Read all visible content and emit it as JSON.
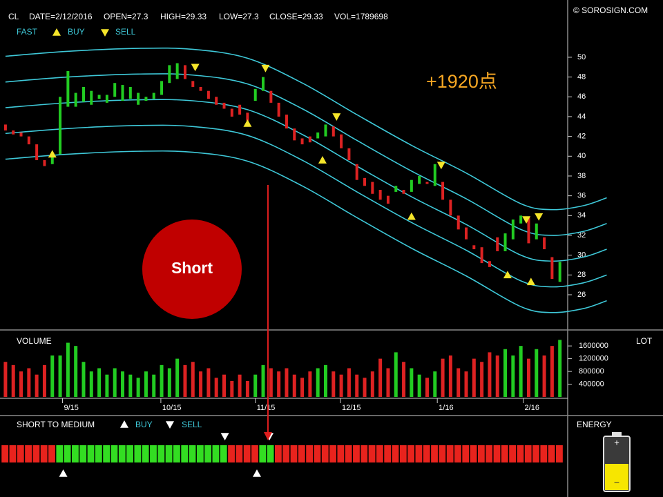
{
  "header": {
    "symbol": "CL",
    "date": "DATE=2/12/2016",
    "open": "OPEN=27.3",
    "high": "HIGH=29.33",
    "low": "LOW=27.3",
    "close": "CLOSE=29.33",
    "vol": "VOL=1789698",
    "copyright": "© SOROSIGN.COM"
  },
  "energy": {
    "title": "ENERGY"
  },
  "chart_data": [
    {
      "type": "candlestick",
      "annotation": "+1920点",
      "callout": "Short",
      "xlim": [
        -0.7,
        72
      ],
      "ylim": [
        23,
        51.6
      ],
      "yticks": [
        26,
        28,
        30,
        32,
        34,
        36,
        38,
        40,
        42,
        44,
        46,
        48,
        50
      ],
      "up_color": "#22cc22",
      "down_color": "#dd2222",
      "open": [
        43.2,
        42.6,
        42.4,
        42.0,
        41.2,
        39.6,
        39.2,
        40.2,
        45.0,
        45.0,
        45.5,
        45.2,
        45.8,
        45.4,
        46.0,
        45.6,
        45.8,
        45.2,
        45.6,
        45.8,
        46.2,
        47.4,
        47.8,
        49.2,
        47.6,
        47.0,
        46.6,
        46.0,
        45.4,
        44.8,
        45.2,
        44.4,
        45.6,
        46.6,
        46.6,
        45.4,
        44.2,
        42.8,
        41.8,
        42.0,
        41.8,
        42.0,
        43.0,
        42.2,
        40.8,
        39.2,
        37.8,
        37.4,
        36.6,
        36.0,
        36.4,
        36.6,
        36.4,
        37.2,
        37.4,
        37.0,
        37.4,
        35.6,
        34.0,
        32.8,
        31.0,
        30.8,
        29.4,
        31.8,
        30.4,
        31.6,
        33.2,
        33.8,
        31.6,
        31.8,
        29.8,
        27.3
      ],
      "close": [
        42.6,
        42.2,
        42.0,
        41.2,
        39.6,
        39.0,
        40.2,
        46.0,
        48.6,
        46.4,
        47.0,
        46.6,
        46.2,
        46.2,
        47.4,
        47.2,
        47.0,
        46.4,
        46.0,
        46.4,
        47.6,
        49.2,
        49.4,
        47.8,
        47.0,
        46.6,
        45.8,
        45.2,
        44.8,
        44.0,
        44.2,
        43.6,
        46.8,
        48.0,
        45.4,
        44.0,
        42.8,
        41.6,
        41.2,
        41.4,
        42.4,
        43.2,
        42.0,
        40.8,
        39.6,
        37.6,
        37.0,
        36.2,
        35.6,
        35.2,
        37.0,
        36.2,
        37.6,
        38.0,
        37.2,
        39.2,
        35.6,
        34.0,
        32.6,
        31.6,
        30.6,
        29.2,
        28.8,
        30.4,
        32.2,
        33.6,
        34.0,
        31.2,
        33.2,
        30.6,
        27.6,
        29.33
      ],
      "bands": {
        "name": "FAST",
        "color": "#3ec8d8",
        "x": [
          0,
          8,
          17,
          24,
          31,
          38,
          45,
          52,
          59,
          66,
          70,
          74,
          77
        ],
        "lines": [
          [
            50.1,
            50.6,
            50.9,
            50.8,
            49.9,
            47.4,
            44.2,
            41.1,
            38.3,
            35.2,
            34.6,
            35.0,
            35.8
          ],
          [
            47.5,
            48.0,
            48.3,
            48.2,
            47.3,
            44.8,
            41.6,
            38.5,
            35.7,
            32.6,
            32.0,
            32.4,
            33.2
          ],
          [
            44.9,
            45.4,
            45.7,
            45.6,
            44.7,
            42.2,
            39.0,
            35.9,
            33.1,
            30.0,
            29.4,
            29.8,
            30.6
          ],
          [
            42.3,
            42.8,
            43.1,
            43.0,
            42.1,
            39.6,
            36.4,
            33.3,
            30.5,
            27.4,
            26.8,
            27.2,
            28.0
          ],
          [
            39.7,
            40.2,
            40.5,
            40.4,
            39.5,
            37.0,
            33.8,
            30.7,
            27.9,
            24.8,
            24.2,
            24.6,
            25.4
          ]
        ]
      },
      "buy_signals": {
        "name": "BUY",
        "color": "#f5e52a",
        "x": [
          6,
          31,
          40.6,
          52,
          64.3,
          67.3
        ],
        "y": [
          40.2,
          43.3,
          39.6,
          33.9,
          28.0,
          27.3
        ]
      },
      "sell_signals": {
        "name": "SELL",
        "color": "#f5e52a",
        "x": [
          24.3,
          33.3,
          42.4,
          55.8,
          66.7,
          68.3
        ],
        "y": [
          49.0,
          48.9,
          44.0,
          39.1,
          33.6,
          33.9
        ]
      }
    },
    {
      "type": "bar",
      "title": "VOLUME",
      "unit_label": "LOT",
      "xlim": [
        -0.7,
        72
      ],
      "ylim": [
        0,
        1950000
      ],
      "yticks": [
        400000,
        800000,
        1200000,
        1600000
      ],
      "xticks": [
        {
          "value": 7.3,
          "label": "9/15"
        },
        {
          "value": 19.9,
          "label": "10/15"
        },
        {
          "value": 32,
          "label": "11/15"
        },
        {
          "value": 42.9,
          "label": "12/15"
        },
        {
          "value": 55.3,
          "label": "1/16"
        },
        {
          "value": 66.3,
          "label": "2/16"
        }
      ],
      "values": [
        1100000,
        1000000,
        800000,
        900000,
        700000,
        1000000,
        1300000,
        1300000,
        1700000,
        1600000,
        1100000,
        800000,
        900000,
        700000,
        900000,
        800000,
        700000,
        600000,
        800000,
        700000,
        1000000,
        900000,
        1200000,
        1000000,
        1100000,
        800000,
        900000,
        600000,
        700000,
        500000,
        700000,
        500000,
        700000,
        1000000,
        900000,
        800000,
        900000,
        700000,
        600000,
        800000,
        900000,
        1000000,
        800000,
        700000,
        900000,
        700000,
        600000,
        800000,
        1200000,
        900000,
        1400000,
        1100000,
        900000,
        700000,
        600000,
        800000,
        1200000,
        1300000,
        900000,
        800000,
        1200000,
        1100000,
        1400000,
        1300000,
        1500000,
        1300000,
        1600000,
        1200000,
        1500000,
        1300000,
        1600000,
        1789698
      ]
    },
    {
      "type": "strip",
      "title": "SHORT TO MEDIUM",
      "xlim": [
        -0.7,
        72
      ],
      "runs": [
        {
          "color": "#e8231d",
          "bars": 7
        },
        {
          "color": "#33dd22",
          "bars": 22
        },
        {
          "color": "#e8231d",
          "bars": 4
        },
        {
          "color": "#33dd22",
          "bars": 2
        },
        {
          "color": "#e8231d",
          "bars": 37
        }
      ],
      "buy_signals": {
        "name": "BUY",
        "color": "#ffffff",
        "x": [
          7.4,
          32.2
        ]
      },
      "sell_signals": {
        "name": "SELL",
        "color": "#ffffff",
        "x": [
          28.1,
          33.8
        ]
      }
    }
  ]
}
